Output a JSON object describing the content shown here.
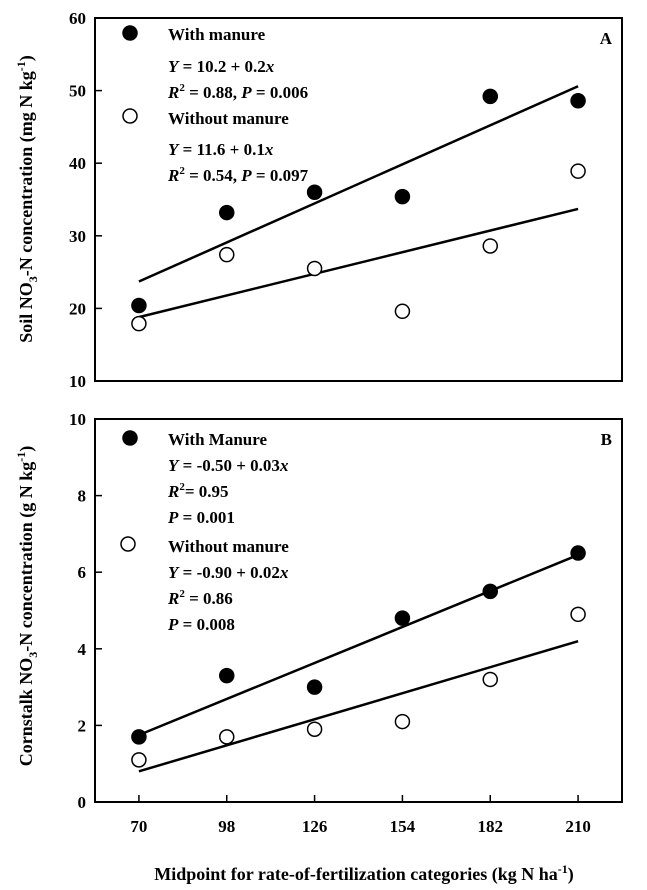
{
  "chart_data": [
    {
      "type": "scatter",
      "panel_label": "A",
      "x": [
        70,
        98,
        126,
        154,
        182,
        210
      ],
      "xlim": [
        56,
        224
      ],
      "ylim": [
        10,
        60
      ],
      "yticks": [
        10,
        20,
        30,
        40,
        50,
        60
      ],
      "grid": false,
      "series": [
        {
          "name": "With manure",
          "marker": "filled-circle",
          "color": "#000000",
          "values": [
            20.4,
            33.2,
            36.0,
            35.4,
            49.2,
            48.6
          ],
          "fit": {
            "intercept": 10.2,
            "slope": 0.2,
            "x_range": [
              70,
              210
            ],
            "y_at_ends": [
              23.7,
              50.6
            ]
          },
          "legend_lines": [
            "Y = 10.2 + 0.2x",
            "R2 = 0.88, P = 0.006"
          ]
        },
        {
          "name": "Without manure",
          "marker": "open-circle",
          "color": "#000000",
          "values": [
            17.9,
            27.4,
            25.5,
            19.6,
            28.6,
            38.9
          ],
          "fit": {
            "intercept": 11.6,
            "slope": 0.1,
            "x_range": [
              70,
              210
            ],
            "y_at_ends": [
              18.8,
              33.7
            ]
          },
          "legend_lines": [
            "Y = 11.6 + 0.1x",
            "R2 = 0.54, P = 0.097"
          ]
        }
      ],
      "legend_placement": "top-left"
    },
    {
      "type": "scatter",
      "panel_label": "B",
      "x": [
        70,
        98,
        126,
        154,
        182,
        210
      ],
      "xlim": [
        56,
        224
      ],
      "ylim": [
        0,
        10
      ],
      "yticks": [
        0,
        2,
        4,
        6,
        8,
        10
      ],
      "xticks": [
        70,
        98,
        126,
        154,
        182,
        210
      ],
      "grid": false,
      "series": [
        {
          "name": "With Manure",
          "marker": "filled-circle",
          "color": "#000000",
          "values": [
            1.7,
            3.3,
            3.0,
            4.8,
            5.5,
            6.5
          ],
          "fit": {
            "intercept": -0.5,
            "slope": 0.03,
            "x_range": [
              70,
              210
            ],
            "y_at_ends": [
              1.75,
              6.45
            ]
          },
          "legend_lines": [
            "Y = -0.50 + 0.03x",
            "R2= 0.95",
            "P = 0.001"
          ]
        },
        {
          "name": "Without manure",
          "marker": "open-circle",
          "color": "#000000",
          "values": [
            1.1,
            1.7,
            1.9,
            2.1,
            3.2,
            4.9
          ],
          "fit": {
            "intercept": -0.9,
            "slope": 0.02,
            "x_range": [
              70,
              210
            ],
            "y_at_ends": [
              0.8,
              4.2
            ]
          },
          "legend_lines": [
            "Y = -0.90 + 0.02x",
            "R2 = 0.86",
            "P = 0.008"
          ]
        }
      ],
      "legend_placement": "top-left"
    }
  ],
  "xlabel": "Midpoint for rate-of-fertilization categories (kg N ha-1)",
  "ylabel_top": "Soil NO3-N concentration (mg N kg-1)",
  "ylabel_bottom": "Cornstalk NO3-N concentration (g N kg-1)"
}
